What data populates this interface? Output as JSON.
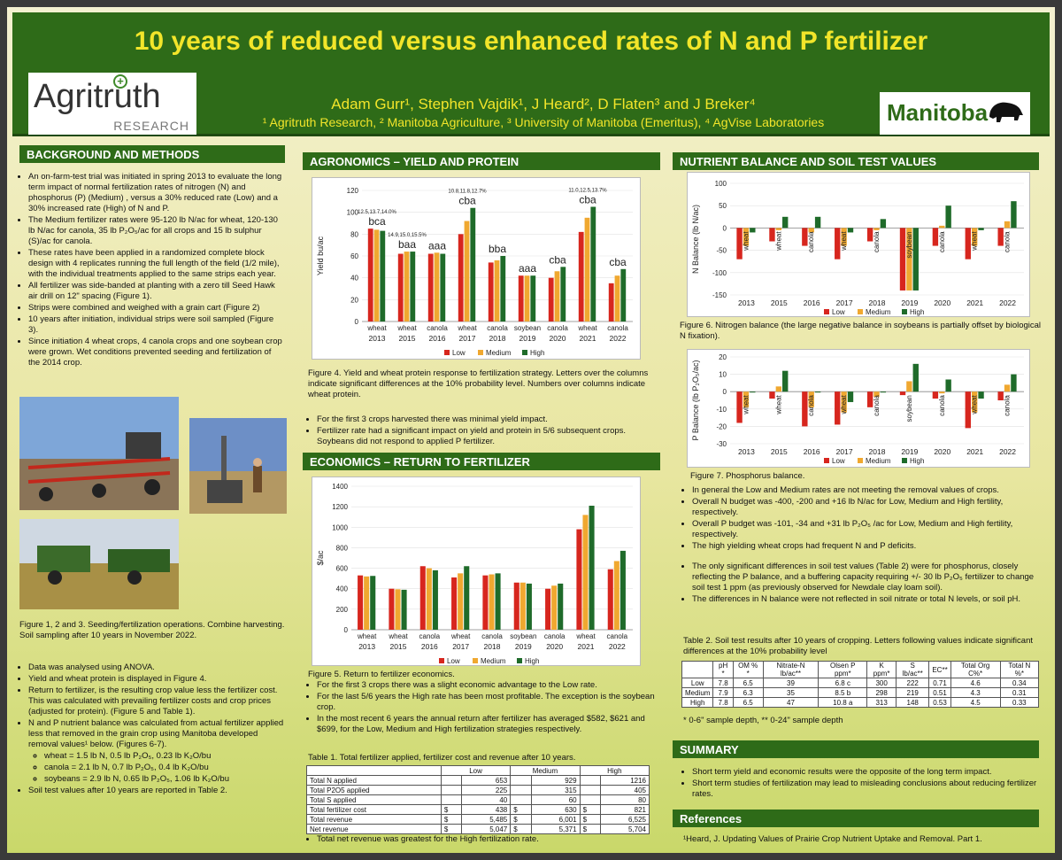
{
  "title": "10 years of reduced versus enhanced rates of N and P fertilizer",
  "logos": {
    "agritruth_main": "Agritruth",
    "agritruth_sub": "RESEARCH",
    "manitoba": "Manitoba"
  },
  "authors": "Adam Gurr¹, Stephen Vajdik¹, J Heard², D Flaten³ and J Breker⁴",
  "affiliations": "¹ Agritruth Research, ² Manitoba Agriculture, ³ University of Manitoba (Emeritus), ⁴ AgVise Laboratories",
  "colors": {
    "low": "#d7261e",
    "medium": "#f0a830",
    "high": "#1f6b2a",
    "green": "#2e6b18",
    "yellow": "#f2e52a"
  },
  "background": {
    "heading": "BACKGROUND AND METHODS",
    "bullets": [
      "An on-farm-test trial was initiated in spring 2013 to evaluate the long term impact of normal fertilization rates of nitrogen (N) and phosphorus (P) (Medium) , versus a 30% reduced rate (Low) and a 30% increased rate (High) of N and P.",
      "The Medium fertilizer rates were 95-120 lb N/ac for wheat, 120-130 lb N/ac for canola, 35 lb P₂O₅/ac for all crops and 15 lb sulphur (S)/ac for canola.",
      "These rates have been applied in a randomized complete block design with 4 replicates running the full length of the field (1/2 mile), with the individual treatments applied to the same strips each year.",
      "All fertilizer was side-banded at planting with a zero till Seed Hawk air drill on 12\" spacing (Figure 1).",
      "Strips were combined and weighed with a grain cart (Figure 2)",
      "10 years after initiation, individual strips were soil sampled (Figure 3).",
      "Since initiation 4 wheat crops, 4 canola crops and one soybean crop were grown. Wet conditions prevented seeding and fertilization of the 2014 crop."
    ],
    "photo_caption": "Figure 1, 2 and 3. Seeding/fertilization operations. Combine harvesting. Soil sampling after 10 years in November 2022.",
    "bullets2": [
      "Data was analysed using ANOVA.",
      "Yield and wheat protein is displayed in Figure 4.",
      "Return to fertilizer, is the resulting crop value less the fertilizer cost. This was calculated with prevailing fertilizer costs and crop prices (adjusted for protein). (Figure 5 and Table 1).",
      "N and P nutrient balance was calculated from actual fertilizer applied less that removed in the grain crop using Manitoba developed removal values¹ below. (Figures 6-7)."
    ],
    "removal": [
      "wheat = 1.5 lb N, 0.5 lb P₂O₅, 0.23 lb K₂O/bu",
      "canola = 2.1 lb N, 0.7 lb P₂O₅, 0.4 lb K₂O/bu",
      "soybeans = 2.9 lb N, 0.65 lb P₂O₅, 1.06 lb K₂O/bu"
    ],
    "last_bullet": "Soil test values after 10 years are reported in Table 2."
  },
  "agronomics": {
    "heading": "AGRONOMICS – YIELD AND PROTEIN",
    "caption": "Figure 4. Yield and wheat protein response to fertilization strategy. Letters over the columns indicate significant differences at the 10% probability level. Numbers over columns indicate wheat protein.",
    "bullets": [
      "For the first 3 crops harvested there was minimal yield impact.",
      "Fertilizer rate had a significant impact on yield and protein in 5/6 subsequent crops. Soybeans did not respond to applied P fertilizer."
    ]
  },
  "economics": {
    "heading": "ECONOMICS – RETURN TO FERTILIZER",
    "caption": "Figure 5. Return to fertilizer economics.",
    "bullets": [
      "For the first 3 crops there was a slight economic advantage to the Low rate.",
      "For the last 5/6 years the High rate has been most profitable. The exception is the soybean crop.",
      "In the most recent 6 years the annual return after fertilizer has averaged $582, $621 and $699, for the Low, Medium and High fertilization strategies respectively."
    ],
    "table_caption": "Table 1. Total fertilizer applied, fertilizer cost and revenue after 10 years.",
    "table": {
      "headers": [
        "",
        "Low",
        "Medium",
        "High"
      ],
      "rows": [
        [
          "Total N applied",
          "",
          "653",
          "",
          "929",
          "",
          "1216"
        ],
        [
          "Total P2O5 applied",
          "",
          "225",
          "",
          "315",
          "",
          "405"
        ],
        [
          "Total S applied",
          "",
          "40",
          "",
          "60",
          "",
          "80"
        ],
        [
          "Total fertilizer cost",
          "$",
          "438",
          "$",
          "630",
          "$",
          "821"
        ],
        [
          "Total revenue",
          "$",
          "5,485",
          "$",
          "6,001",
          "$",
          "6,525"
        ],
        [
          "Net revenue",
          "$",
          "5,047",
          "$",
          "5,371",
          "$",
          "5,704"
        ]
      ]
    },
    "after_table": "Total net revenue was greatest for the High fertilization rate."
  },
  "nutrient": {
    "heading": "NUTRIENT BALANCE AND SOIL TEST VALUES",
    "fig6_caption": "Figure 6. Nitrogen balance (the large negative balance in soybeans is partially offset by biological N fixation).",
    "fig7_caption": "Figure 7. Phosphorus balance.",
    "bullets": [
      "In general the Low and Medium rates are not meeting the removal values of crops.",
      "Overall N budget was -400, -200 and +16 lb N/ac for Low, Medium and High fertility, respectively.",
      "Overall P budget was -101, -34 and +31 lb P₂O₅ /ac for Low, Medium and High fertility, respectively.",
      "The high yielding wheat crops had frequent N and P deficits."
    ],
    "bullets2": [
      "The only significant differences in soil test values (Table 2) were for phosphorus, closely reflecting the P balance, and a buffering capacity requiring +/- 30 lb P₂O₅ fertilizer to change soil test 1 ppm (as previously observed for Newdale clay loam soil).",
      "The differences in N balance were not reflected in soil nitrate or total N levels, or soil pH."
    ],
    "table_caption": "Table 2. Soil test results after 10 years of cropping. Letters following values indicate significant differences at the 10% probability level",
    "table": {
      "headers": [
        "",
        "pH *",
        "OM % *",
        "Nitrate-N lb/ac**",
        "Olsen P ppm*",
        "K ppm*",
        "S lb/ac**",
        "EC**",
        "Total Org C%*",
        "Total N %*"
      ],
      "rows": [
        [
          "Low",
          "7.8",
          "6.5",
          "39",
          "6.8 c",
          "300",
          "222",
          "0.71",
          "4.6",
          "0.34"
        ],
        [
          "Medium",
          "7.9",
          "6.3",
          "35",
          "8.5 b",
          "298",
          "219",
          "0.51",
          "4.3",
          "0.31"
        ],
        [
          "High",
          "7.8",
          "6.5",
          "47",
          "10.8 a",
          "313",
          "148",
          "0.53",
          "4.5",
          "0.33"
        ]
      ]
    },
    "table_note": "* 0-6\" sample depth, ** 0-24\" sample depth"
  },
  "summary": {
    "heading": "SUMMARY",
    "bullets": [
      "Short term yield and economic results were the opposite of the long term impact.",
      "Short term studies of fertilization may lead to misleading conclusions about reducing fertilizer rates."
    ]
  },
  "references": {
    "heading": "References",
    "text": "¹Heard, J.  Updating Values of Prairie Crop Nutrient Uptake and Removal. Part 1."
  },
  "chart_data": [
    {
      "id": "yield",
      "type": "bar",
      "title": "",
      "ylabel": "Yield bu/ac",
      "ylim": [
        0,
        120
      ],
      "yticks": [
        0,
        20,
        40,
        60,
        80,
        100,
        120
      ],
      "categories": [
        "wheat",
        "wheat",
        "canola",
        "wheat",
        "canola",
        "soybean",
        "canola",
        "wheat",
        "canola"
      ],
      "years": [
        "2013",
        "2015",
        "2016",
        "2017",
        "2018",
        "2019",
        "2020",
        "2021",
        "2022"
      ],
      "series": [
        {
          "name": "Low",
          "values": [
            85,
            62,
            62,
            80,
            54,
            42,
            40,
            82,
            35
          ]
        },
        {
          "name": "Medium",
          "values": [
            84,
            64,
            63,
            92,
            56,
            42,
            46,
            95,
            42
          ]
        },
        {
          "name": "High",
          "values": [
            83,
            64,
            62,
            104,
            60,
            42,
            50,
            105,
            48
          ]
        }
      ],
      "letters": [
        "bca",
        "baa",
        "aaa",
        "cba",
        "bba",
        "aaa",
        "cba",
        "cba",
        "cba"
      ],
      "protein": [
        "12.5,13.7,14.0%",
        "14.9,15.0,15.5%",
        "",
        "10.8,11.8,12.7%",
        "",
        "",
        "",
        "11.0,12.5,13.7%",
        ""
      ],
      "legend": [
        "Low",
        "Medium",
        "High"
      ]
    },
    {
      "id": "return",
      "type": "bar",
      "ylabel": "$/ac",
      "ylim": [
        0,
        1400
      ],
      "yticks": [
        0,
        200,
        400,
        600,
        800,
        1000,
        1200,
        1400
      ],
      "categories": [
        "wheat",
        "wheat",
        "canola",
        "wheat",
        "canola",
        "soybean",
        "canola",
        "wheat",
        "canola"
      ],
      "years": [
        "2013",
        "2015",
        "2016",
        "2017",
        "2018",
        "2019",
        "2020",
        "2021",
        "2022"
      ],
      "series": [
        {
          "name": "Low",
          "values": [
            530,
            400,
            620,
            510,
            530,
            460,
            400,
            980,
            590
          ]
        },
        {
          "name": "Medium",
          "values": [
            520,
            395,
            600,
            550,
            540,
            460,
            430,
            1120,
            670
          ]
        },
        {
          "name": "High",
          "values": [
            525,
            390,
            580,
            620,
            550,
            450,
            450,
            1210,
            770
          ]
        }
      ],
      "legend": [
        "Low",
        "Medium",
        "High"
      ]
    },
    {
      "id": "nbalance",
      "type": "bar",
      "ylabel": "N Balance (lb N/ac)",
      "ylim": [
        -150,
        100
      ],
      "yticks": [
        -150,
        -100,
        -50,
        0,
        50,
        100
      ],
      "categories": [
        "wheat",
        "wheat",
        "canola",
        "wheat",
        "canola",
        "soybean",
        "canola",
        "wheat",
        "canola"
      ],
      "years": [
        "2013",
        "2015",
        "2016",
        "2017",
        "2018",
        "2019",
        "2020",
        "2021",
        "2022"
      ],
      "series": [
        {
          "name": "Low",
          "values": [
            -70,
            -30,
            -40,
            -70,
            -30,
            -140,
            -40,
            -70,
            -40
          ]
        },
        {
          "name": "Medium",
          "values": [
            -40,
            -5,
            -10,
            -40,
            -5,
            -140,
            5,
            -40,
            15
          ]
        },
        {
          "name": "High",
          "values": [
            -10,
            25,
            25,
            -10,
            20,
            -140,
            50,
            -5,
            60
          ]
        }
      ],
      "legend": [
        "Low",
        "Medium",
        "High"
      ]
    },
    {
      "id": "pbalance",
      "type": "bar",
      "ylabel": "P Balance (lb P₂O₅/ac)",
      "ylim": [
        -30,
        20
      ],
      "yticks": [
        -30,
        -20,
        -10,
        0,
        10,
        20
      ],
      "categories": [
        "wheat",
        "wheat",
        "canola",
        "wheat",
        "canola",
        "soybean",
        "canola",
        "wheat",
        "canola"
      ],
      "years": [
        "2013",
        "2015",
        "2016",
        "2017",
        "2018",
        "2019",
        "2020",
        "2021",
        "2022"
      ],
      "series": [
        {
          "name": "Low",
          "values": [
            -18,
            -4,
            -20,
            -19,
            -9,
            -2,
            -4,
            -21,
            -5
          ]
        },
        {
          "name": "Medium",
          "values": [
            -9,
            3,
            -9,
            -12,
            -3,
            6,
            -1,
            -12,
            4
          ]
        },
        {
          "name": "High",
          "values": [
            0,
            12,
            0,
            -6,
            0,
            16,
            7,
            -4,
            10
          ]
        }
      ],
      "legend": [
        "Low",
        "Medium",
        "High"
      ]
    }
  ]
}
